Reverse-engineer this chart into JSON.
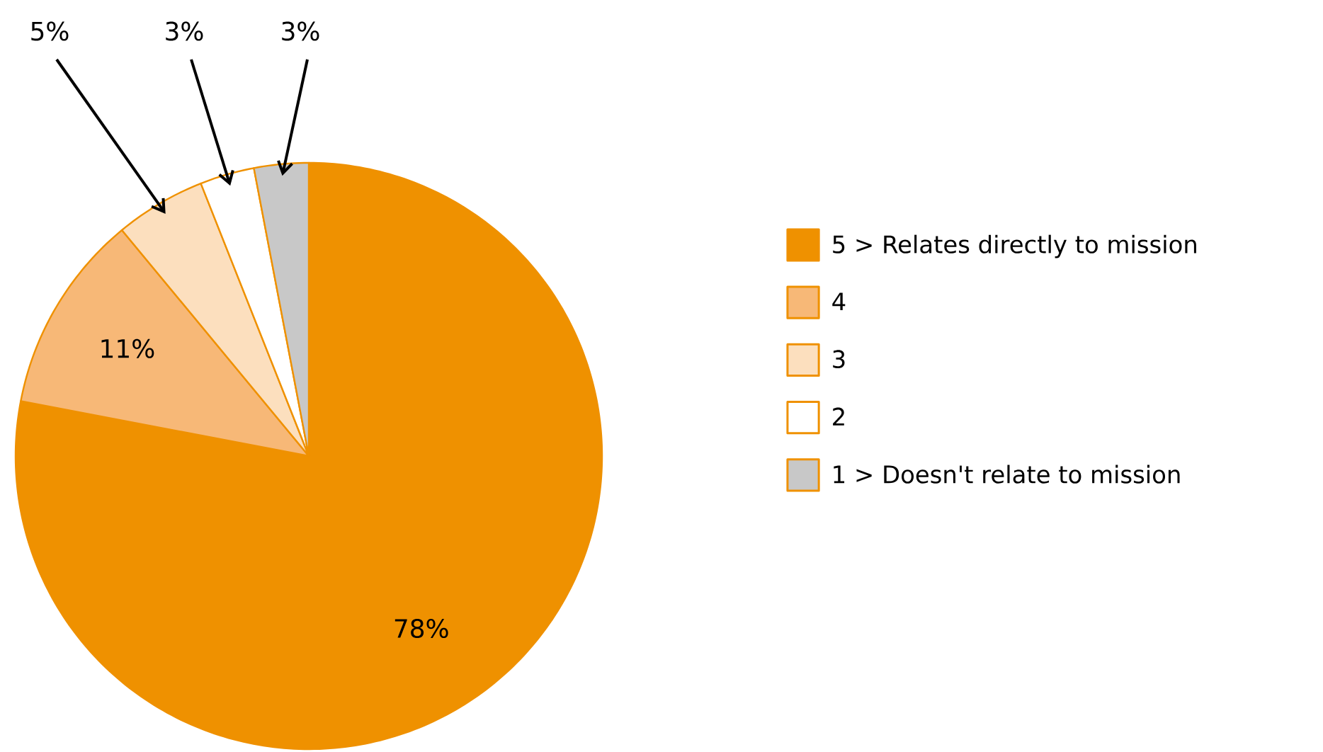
{
  "chart_data": {
    "type": "pie",
    "categories": [
      "5 > Relates directly to mission",
      "4",
      "3",
      "2",
      "1 > Doesn't relate to mission"
    ],
    "values": [
      78,
      11,
      5,
      3,
      3
    ],
    "colors": [
      "#ef9100",
      "#f7b877",
      "#fcdfbe",
      "#ffffff",
      "#c8c8c8"
    ],
    "value_labels": [
      "78%",
      "11%",
      "5%",
      "3%",
      "3%"
    ],
    "legend": "right"
  }
}
